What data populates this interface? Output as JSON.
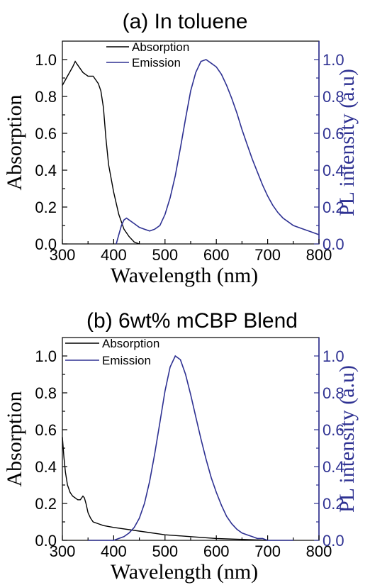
{
  "colors": {
    "absorption": "#000000",
    "emission": "#2e3192"
  },
  "chart_data": [
    {
      "type": "line",
      "title": "(a) In toluene",
      "xlabel": "Wavelength (nm)",
      "ylabel": "Absorption",
      "y2label": "PL intensity (a.u)",
      "xlim": [
        300,
        800
      ],
      "ylim": [
        0,
        1.1
      ],
      "y2lim": [
        0,
        1.1
      ],
      "xticks": [
        "300",
        "400",
        "500",
        "600",
        "700",
        "800"
      ],
      "yticks": [
        "0.0",
        "0.2",
        "0.4",
        "0.6",
        "0.8",
        "1.0"
      ],
      "y2ticks": [
        "0.0",
        "0.2",
        "0.4",
        "0.6",
        "0.8",
        "1.0"
      ],
      "legend_position": "top-left",
      "grid": false,
      "series": [
        {
          "name": "Absorption",
          "axis": "left",
          "x": [
            300,
            310,
            320,
            325,
            330,
            340,
            350,
            360,
            370,
            375,
            380,
            385,
            390,
            400,
            410,
            420,
            430,
            440,
            450
          ],
          "y": [
            0.86,
            0.91,
            0.96,
            0.99,
            0.97,
            0.93,
            0.91,
            0.91,
            0.87,
            0.83,
            0.74,
            0.57,
            0.43,
            0.28,
            0.16,
            0.08,
            0.04,
            0.01,
            0.0
          ]
        },
        {
          "name": "Emission",
          "axis": "right",
          "x": [
            405,
            410,
            415,
            420,
            425,
            430,
            440,
            450,
            460,
            470,
            480,
            490,
            500,
            510,
            520,
            530,
            540,
            550,
            560,
            570,
            580,
            590,
            600,
            610,
            620,
            630,
            640,
            650,
            660,
            670,
            680,
            690,
            700,
            710,
            720,
            730,
            740,
            750,
            760,
            770,
            780,
            790,
            800
          ],
          "y": [
            0.0,
            0.05,
            0.1,
            0.13,
            0.14,
            0.13,
            0.11,
            0.09,
            0.08,
            0.07,
            0.08,
            0.1,
            0.16,
            0.25,
            0.37,
            0.52,
            0.68,
            0.83,
            0.93,
            0.99,
            1.0,
            0.98,
            0.96,
            0.92,
            0.86,
            0.79,
            0.71,
            0.62,
            0.54,
            0.46,
            0.39,
            0.32,
            0.26,
            0.21,
            0.17,
            0.14,
            0.12,
            0.1,
            0.09,
            0.08,
            0.07,
            0.06,
            0.05
          ]
        }
      ]
    },
    {
      "type": "line",
      "title": "(b) 6wt% mCBP Blend",
      "xlabel": "Wavelength (nm)",
      "ylabel": "Absorption",
      "y2label": "PL intensity (a.u)",
      "xlim": [
        300,
        800
      ],
      "ylim": [
        0,
        1.1
      ],
      "y2lim": [
        0,
        1.1
      ],
      "xticks": [
        "300",
        "400",
        "500",
        "600",
        "700",
        "800"
      ],
      "yticks": [
        "0.0",
        "0.2",
        "0.4",
        "0.6",
        "0.8",
        "1.0"
      ],
      "y2ticks": [
        "0.0",
        "0.2",
        "0.4",
        "0.6",
        "0.8",
        "1.0"
      ],
      "legend_position": "top-left",
      "grid": false,
      "series": [
        {
          "name": "Absorption",
          "axis": "left",
          "x": [
            300,
            303,
            306,
            310,
            315,
            320,
            325,
            330,
            335,
            340,
            343,
            346,
            350,
            355,
            360,
            370,
            380,
            400,
            450,
            500,
            550,
            600,
            650,
            700
          ],
          "y": [
            0.56,
            0.45,
            0.37,
            0.3,
            0.26,
            0.24,
            0.23,
            0.22,
            0.22,
            0.24,
            0.23,
            0.2,
            0.15,
            0.12,
            0.1,
            0.09,
            0.08,
            0.07,
            0.05,
            0.03,
            0.02,
            0.01,
            0.005,
            0.0
          ]
        },
        {
          "name": "Emission",
          "axis": "right",
          "x": [
            350,
            400,
            410,
            420,
            430,
            440,
            450,
            460,
            470,
            480,
            490,
            500,
            510,
            520,
            530,
            540,
            550,
            560,
            570,
            580,
            590,
            600,
            610,
            620,
            630,
            640,
            650,
            660,
            670,
            680,
            690,
            700,
            720,
            750
          ],
          "y": [
            0.0,
            0.0,
            0.01,
            0.02,
            0.04,
            0.07,
            0.12,
            0.2,
            0.32,
            0.47,
            0.64,
            0.81,
            0.94,
            1.0,
            0.98,
            0.9,
            0.79,
            0.67,
            0.55,
            0.44,
            0.34,
            0.26,
            0.19,
            0.13,
            0.09,
            0.06,
            0.04,
            0.03,
            0.02,
            0.01,
            0.01,
            0.0,
            0.0,
            0.0
          ]
        }
      ]
    }
  ]
}
